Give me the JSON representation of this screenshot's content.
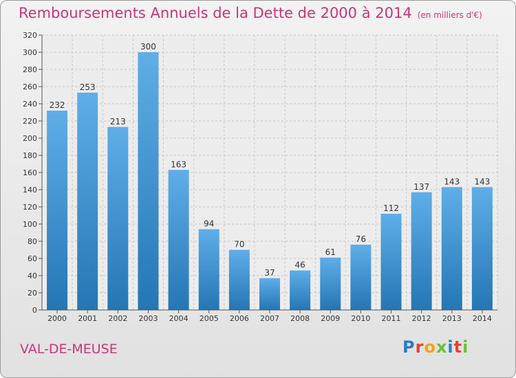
{
  "title": "Remboursements Annuels de la Dette de 2000 à 2014",
  "unit": "(en milliers d'€)",
  "commune": "VAL-DE-MEUSE",
  "logo": "Proxiti",
  "colors": {
    "bar_top": "#5faee8",
    "bar_bottom": "#2476b4",
    "title": "#c8357a",
    "grid": "#c6c6c6"
  },
  "chart_data": {
    "type": "bar",
    "categories": [
      "2000",
      "2001",
      "2002",
      "2003",
      "2004",
      "2005",
      "2006",
      "2007",
      "2008",
      "2009",
      "2010",
      "2011",
      "2012",
      "2013",
      "2014"
    ],
    "values": [
      232,
      253,
      213,
      300,
      163,
      94,
      70,
      37,
      46,
      61,
      76,
      112,
      137,
      143,
      143
    ],
    "data_labels": [
      "232",
      "253",
      "213",
      "300",
      "163",
      "94",
      "70",
      "37",
      "46",
      "61",
      "76",
      "112",
      "137",
      "143",
      "143"
    ],
    "ylim": [
      0,
      320
    ],
    "yticks": [
      0,
      20,
      40,
      60,
      80,
      100,
      120,
      140,
      160,
      180,
      200,
      220,
      240,
      260,
      280,
      300,
      320
    ],
    "grid": true,
    "xlabel": "",
    "ylabel": ""
  }
}
